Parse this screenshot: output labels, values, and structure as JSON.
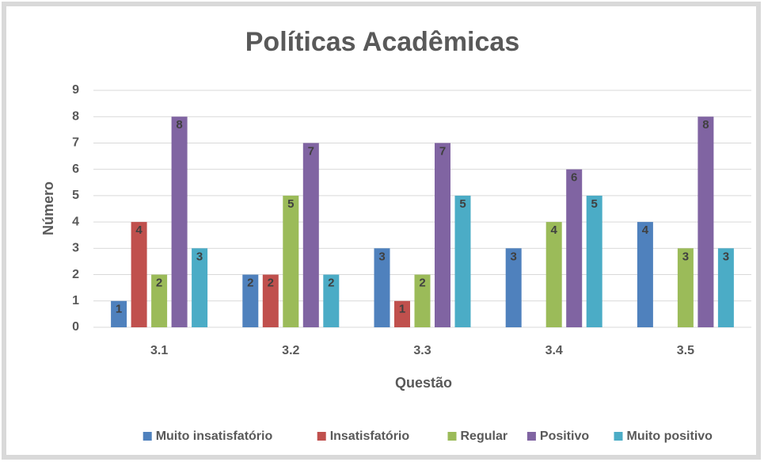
{
  "chart_data": {
    "type": "bar",
    "title": "Políticas Acadêmicas",
    "x_label": "Questão",
    "y_label": "Número",
    "categories": [
      "3.1",
      "3.2",
      "3.3",
      "3.4",
      "3.5"
    ],
    "series": [
      {
        "name": "Muito insatisfatório",
        "color": "#4f81bd",
        "values": [
          1,
          2,
          3,
          3,
          4
        ]
      },
      {
        "name": "Insatisfatório",
        "color": "#c0504d",
        "values": [
          4,
          2,
          1,
          null,
          null
        ]
      },
      {
        "name": "Regular",
        "color": "#9bbb59",
        "values": [
          2,
          5,
          2,
          4,
          3
        ]
      },
      {
        "name": "Positivo",
        "color": "#8064a2",
        "values": [
          8,
          7,
          7,
          6,
          8
        ]
      },
      {
        "name": "Muito positivo",
        "color": "#4bacc6",
        "values": [
          3,
          2,
          5,
          5,
          3
        ]
      }
    ],
    "ylim": [
      0,
      9
    ],
    "yticks": [
      0,
      1,
      2,
      3,
      4,
      5,
      6,
      7,
      8,
      9
    ],
    "grid": true,
    "legend": "bottom"
  }
}
